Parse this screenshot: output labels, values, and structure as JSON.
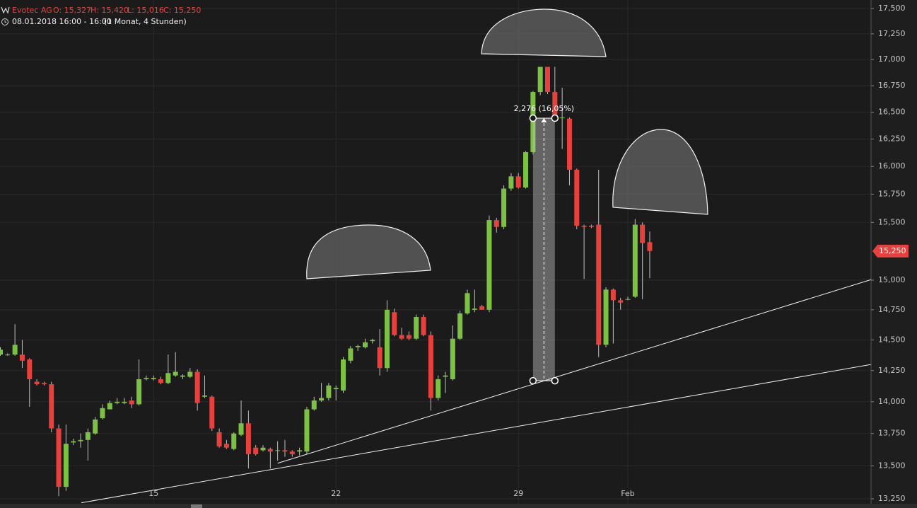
{
  "chart_data": {
    "type": "candlestick",
    "header": {
      "symbol": "Evotec AG",
      "open": "O: 15,327",
      "high": "H: 15,420",
      "low": "L: 15,016",
      "close": "C: 15,250"
    },
    "subheader": {
      "time": "08.01.2018 16:00 - 16:00",
      "period": "(1 Monat, 4 Stunden)"
    },
    "categories": [
      null,
      null,
      null,
      null,
      null,
      null,
      null,
      null,
      null,
      null,
      null,
      null,
      null,
      null,
      null,
      null,
      null,
      null,
      null,
      null,
      null,
      "15",
      null,
      null,
      null,
      null,
      null,
      null,
      null,
      null,
      null,
      null,
      null,
      null,
      null,
      null,
      null,
      null,
      null,
      null,
      null,
      null,
      null,
      null,
      null,
      null,
      "22",
      null,
      null,
      null,
      null,
      null,
      null,
      null,
      null,
      null,
      null,
      null,
      null,
      null,
      null,
      null,
      null,
      null,
      null,
      null,
      null,
      null,
      null,
      null,
      null,
      "29",
      null,
      null,
      null,
      null,
      null,
      null,
      null,
      null,
      null,
      null,
      null,
      null,
      null,
      null,
      "Feb",
      null,
      null,
      null
    ],
    "open": [
      14.38,
      14.38,
      14.38,
      14.38,
      14.34,
      14.16,
      14.15,
      14.14,
      13.79,
      13.34,
      13.68,
      13.69,
      13.7,
      13.75,
      13.87,
      13.94,
      13.99,
      13.99,
      14.01,
      13.98,
      14.18,
      14.18,
      14.18,
      14.15,
      14.21,
      14.2,
      14.2,
      14.24,
      14.04,
      14.04,
      13.76,
      13.67,
      13.63,
      13.74,
      13.83,
      13.64,
      13.62,
      13.63,
      13.62,
      13.62,
      13.61,
      13.61,
      13.61,
      13.94,
      14.01,
      14.03,
      14.1,
      14.09,
      14.33,
      14.44,
      14.44,
      14.49,
      14.44,
      14.27,
      14.73,
      14.54,
      14.54,
      14.51,
      14.69,
      14.54,
      14.03,
      14.2,
      14.18,
      14.51,
      14.72,
      14.75,
      14.78,
      14.75,
      15.52,
      15.46,
      15.8,
      15.91,
      15.81,
      16.13,
      16.69,
      16.93,
      16.69,
      16.45,
      16.44,
      15.97,
      15.47,
      15.47,
      15.48,
      14.46,
      14.92,
      14.83,
      14.84,
      14.86,
      15.48,
      15.327
    ],
    "high": [
      14.44,
      14.39,
      14.63,
      14.5,
      14.35,
      14.18,
      14.16,
      14.16,
      13.82,
      13.82,
      13.71,
      13.75,
      13.79,
      13.88,
      13.98,
      14.01,
      14.03,
      14.03,
      14.04,
      14.34,
      14.21,
      14.21,
      14.2,
      14.38,
      14.4,
      14.22,
      14.27,
      14.26,
      14.21,
      14.05,
      13.79,
      13.7,
      13.76,
      14.01,
      13.93,
      13.66,
      13.66,
      13.64,
      13.69,
      13.7,
      13.62,
      13.64,
      13.96,
      14.04,
      14.15,
      14.15,
      14.13,
      14.36,
      14.45,
      14.46,
      14.51,
      14.51,
      14.59,
      14.83,
      14.76,
      14.6,
      14.57,
      14.71,
      14.71,
      14.57,
      14.21,
      14.24,
      14.62,
      14.74,
      14.92,
      14.92,
      14.79,
      15.56,
      15.54,
      15.83,
      15.94,
      15.94,
      16.14,
      16.7,
      16.93,
      16.93,
      16.93,
      16.73,
      16.45,
      15.98,
      15.48,
      15.48,
      15.97,
      14.94,
      14.93,
      14.85,
      14.86,
      15.53,
      15.5,
      15.42
    ],
    "low": [
      14.37,
      14.37,
      14.37,
      14.27,
      13.96,
      14.13,
      14.13,
      13.76,
      13.27,
      13.31,
      13.66,
      13.64,
      13.54,
      13.74,
      13.86,
      13.94,
      13.98,
      13.98,
      13.95,
      13.97,
      14.17,
      14.17,
      14.14,
      14.14,
      14.2,
      14.18,
      14.19,
      13.93,
      14.03,
      13.77,
      13.64,
      13.63,
      13.62,
      13.73,
      13.48,
      13.58,
      13.61,
      13.48,
      13.54,
      13.57,
      13.57,
      13.58,
      13.59,
      13.93,
      14.0,
      14.01,
      14.01,
      14.07,
      14.31,
      14.41,
      14.43,
      14.47,
      14.21,
      14.24,
      14.53,
      14.5,
      14.5,
      14.5,
      14.53,
      13.93,
      14.01,
      14.07,
      14.17,
      14.5,
      14.71,
      14.73,
      14.75,
      14.73,
      15.41,
      15.44,
      15.78,
      15.8,
      15.8,
      16.11,
      16.66,
      16.67,
      16.42,
      16.16,
      15.83,
      15.44,
      15.01,
      15.45,
      14.36,
      14.44,
      14.47,
      14.75,
      14.83,
      14.85,
      14.84,
      15.016
    ],
    "close": [
      14.42,
      14.38,
      14.46,
      14.33,
      14.18,
      14.14,
      14.14,
      13.79,
      13.34,
      13.67,
      13.69,
      13.7,
      13.76,
      13.86,
      13.95,
      13.99,
      14.0,
      14.0,
      13.98,
      14.18,
      14.19,
      14.19,
      14.15,
      14.23,
      14.24,
      14.21,
      14.24,
      13.99,
      14.05,
      13.79,
      13.65,
      13.64,
      13.75,
      13.83,
      13.59,
      13.59,
      13.64,
      13.61,
      13.62,
      13.61,
      13.59,
      13.62,
      13.94,
      14.01,
      14.03,
      14.13,
      14.11,
      14.34,
      14.43,
      14.45,
      14.48,
      14.5,
      14.27,
      14.75,
      14.54,
      14.51,
      14.51,
      14.69,
      14.54,
      14.03,
      14.18,
      14.21,
      14.51,
      14.72,
      14.89,
      14.76,
      14.75,
      15.52,
      15.46,
      15.8,
      15.91,
      15.81,
      16.13,
      16.69,
      16.93,
      16.69,
      16.44,
      16.45,
      15.97,
      15.47,
      15.46,
      15.46,
      14.46,
      14.92,
      14.83,
      14.81,
      14.84,
      15.48,
      15.32,
      15.25
    ],
    "up_color": "#7cc242",
    "down_color": "#e8403c",
    "log_scale": true,
    "grid": true,
    "ylim": [
      13.25,
      17.5
    ],
    "yticks": [
      {
        "value": 13.25,
        "label": "13,250"
      },
      {
        "value": 13.5,
        "label": "13,500"
      },
      {
        "value": 13.75,
        "label": "13,750"
      },
      {
        "value": 14,
        "label": "14,000"
      },
      {
        "value": 14.25,
        "label": "14,250"
      },
      {
        "value": 14.5,
        "label": "14,500"
      },
      {
        "value": 14.75,
        "label": "14,750"
      },
      {
        "value": 15,
        "label": "15,000"
      },
      {
        "value": 15.5,
        "label": "15,500"
      },
      {
        "value": 15.75,
        "label": "15,750"
      },
      {
        "value": 16,
        "label": "16,000"
      },
      {
        "value": 16.25,
        "label": "16,250"
      },
      {
        "value": 16.5,
        "label": "16,500"
      },
      {
        "value": 16.75,
        "label": "16,750"
      },
      {
        "value": 17,
        "label": "17,000"
      },
      {
        "value": 17.25,
        "label": "17,250"
      },
      {
        "value": 17.5,
        "label": "17,500"
      }
    ],
    "last_price": {
      "value": 15.25,
      "label": "15,250"
    },
    "measure": {
      "x": [
        73,
        76
      ],
      "from": 14.168,
      "to": 16.444,
      "label": "2,276 (16,05%)"
    },
    "trendlines": [
      {
        "x": [
          38,
          119.4
        ],
        "y": [
          13.52,
          15.006
        ]
      },
      {
        "x": [
          11.1,
          119.4
        ],
        "y": [
          13.22,
          14.3
        ]
      }
    ]
  }
}
